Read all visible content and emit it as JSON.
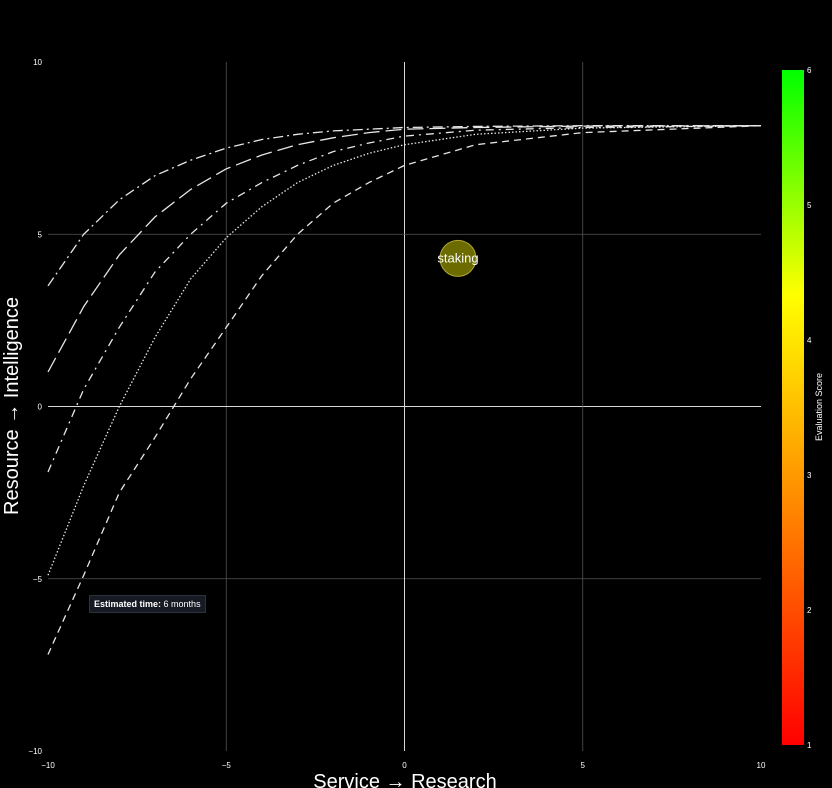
{
  "chart_data": {
    "type": "line",
    "xlabel": "Service → Research",
    "ylabel": "Resource → Intelligence",
    "xlim": [
      -10,
      10
    ],
    "ylim": [
      -10,
      10
    ],
    "x_ticks": [
      "−10",
      "−5",
      "0",
      "5",
      "10"
    ],
    "y_ticks": [
      "−10",
      "−5",
      "0",
      "5",
      "10"
    ],
    "grid": true,
    "series": [
      {
        "dash": "dashdot",
        "points": [
          [
            -10,
            3.5
          ],
          [
            -9,
            5.0
          ],
          [
            -8,
            6.0
          ],
          [
            -7,
            6.7
          ],
          [
            -6,
            7.15
          ],
          [
            -5,
            7.5
          ],
          [
            -4,
            7.75
          ],
          [
            -3,
            7.9
          ],
          [
            -2,
            8.0
          ],
          [
            -1,
            8.05
          ],
          [
            0,
            8.1
          ],
          [
            2,
            8.13
          ],
          [
            5,
            8.15
          ],
          [
            10,
            8.15
          ]
        ]
      },
      {
        "dash": "longdash",
        "points": [
          [
            -10,
            1.0
          ],
          [
            -9,
            2.9
          ],
          [
            -8,
            4.4
          ],
          [
            -7,
            5.5
          ],
          [
            -6,
            6.3
          ],
          [
            -5,
            6.9
          ],
          [
            -4,
            7.3
          ],
          [
            -3,
            7.6
          ],
          [
            -2,
            7.8
          ],
          [
            -1,
            7.95
          ],
          [
            0,
            8.05
          ],
          [
            2,
            8.1
          ],
          [
            5,
            8.14
          ],
          [
            10,
            8.15
          ]
        ]
      },
      {
        "dash": "dashdotsparse",
        "points": [
          [
            -10,
            -1.9
          ],
          [
            -9,
            0.5
          ],
          [
            -8,
            2.3
          ],
          [
            -7,
            3.9
          ],
          [
            -6,
            5.0
          ],
          [
            -5,
            5.9
          ],
          [
            -4,
            6.5
          ],
          [
            -3,
            7.0
          ],
          [
            -2,
            7.4
          ],
          [
            -1,
            7.65
          ],
          [
            0,
            7.85
          ],
          [
            2,
            8.02
          ],
          [
            5,
            8.1
          ],
          [
            10,
            8.15
          ]
        ]
      },
      {
        "dash": "dot",
        "points": [
          [
            -10,
            -4.9
          ],
          [
            -9,
            -2.3
          ],
          [
            -8,
            0.0
          ],
          [
            -7,
            2.0
          ],
          [
            -6,
            3.7
          ],
          [
            -5,
            4.9
          ],
          [
            -4,
            5.8
          ],
          [
            -3,
            6.5
          ],
          [
            -2,
            7.0
          ],
          [
            -1,
            7.35
          ],
          [
            0,
            7.6
          ],
          [
            2,
            7.9
          ],
          [
            5,
            8.08
          ],
          [
            10,
            8.15
          ]
        ]
      },
      {
        "dash": "dash",
        "points": [
          [
            -10,
            -7.2
          ],
          [
            -9,
            -4.9
          ],
          [
            -8,
            -2.5
          ],
          [
            -7,
            -0.9
          ],
          [
            -6,
            0.8
          ],
          [
            -5,
            2.3
          ],
          [
            -4,
            3.8
          ],
          [
            -3,
            5.0
          ],
          [
            -2,
            5.9
          ],
          [
            -1,
            6.5
          ],
          [
            0,
            7.0
          ],
          [
            2,
            7.6
          ],
          [
            5,
            7.95
          ],
          [
            10,
            8.15
          ]
        ]
      }
    ],
    "bubbles": [
      {
        "label": "staking",
        "x": 1.5,
        "y": 4.3,
        "score": 3.5,
        "color": "#6b6b00"
      }
    ],
    "colorbar": {
      "title": "Evaluation Score",
      "min": 1,
      "max": 6,
      "ticks": [
        "1",
        "2",
        "3",
        "4",
        "5",
        "6"
      ],
      "colors": [
        "#ff0000",
        "#ff8000",
        "#ffff00",
        "#00ff00"
      ]
    },
    "tooltip": {
      "label": "Estimated time:",
      "value": "6 months"
    }
  }
}
